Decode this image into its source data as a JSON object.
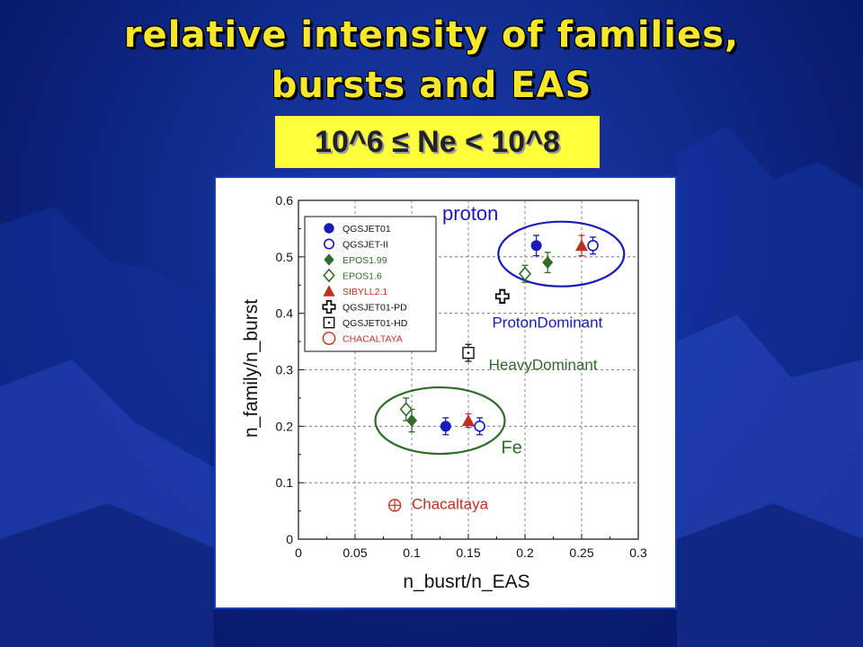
{
  "slide": {
    "title_line1": "relative intensity of families,",
    "title_line2": "bursts and EAS",
    "range_label": "10^6 ≤ Ne < 10^8"
  },
  "colors": {
    "title": "#f6e72a",
    "range_bg": "#ffff3b",
    "blue": "#1a1ab8",
    "green": "#2f6b2a",
    "red": "#c03020",
    "black": "#111111"
  },
  "chart_data": {
    "type": "scatter",
    "xlabel": "n_busrt/n_EAS",
    "ylabel": "n_family/n_burst",
    "xlim": [
      0,
      0.3
    ],
    "ylim": [
      0,
      0.6
    ],
    "xticks": [
      "0",
      "0.05",
      "0.1",
      "0.15",
      "0.2",
      "0.25",
      "0.3"
    ],
    "yticks": [
      "0",
      "0.1",
      "0.2",
      "0.3",
      "0.4",
      "0.5",
      "0.6"
    ],
    "xtick_values": [
      0,
      0.05,
      0.1,
      0.15,
      0.2,
      0.25,
      0.3
    ],
    "ytick_values": [
      0,
      0.1,
      0.2,
      0.3,
      0.4,
      0.5,
      0.6
    ],
    "legend_position": "top-left",
    "series": [
      {
        "name": "QGSJET01",
        "marker": "filled-circle",
        "color": "#1a1ab8",
        "points": [
          {
            "x": 0.21,
            "y": 0.52,
            "err": 0.018
          },
          {
            "x": 0.13,
            "y": 0.2,
            "err": 0.015
          }
        ]
      },
      {
        "name": "QGSJET-II",
        "marker": "open-circle",
        "color": "#1a1ab8",
        "points": [
          {
            "x": 0.26,
            "y": 0.52,
            "err": 0.015
          },
          {
            "x": 0.16,
            "y": 0.2,
            "err": 0.015
          }
        ]
      },
      {
        "name": "EPOS1.99",
        "marker": "filled-diamond",
        "color": "#2f6b2a",
        "points": [
          {
            "x": 0.22,
            "y": 0.49,
            "err": 0.018
          },
          {
            "x": 0.1,
            "y": 0.21,
            "err": 0.02
          }
        ]
      },
      {
        "name": "EPOS1.6",
        "marker": "open-diamond",
        "color": "#2f6b2a",
        "points": [
          {
            "x": 0.2,
            "y": 0.47,
            "err": 0.015
          },
          {
            "x": 0.095,
            "y": 0.23,
            "err": 0.02
          }
        ]
      },
      {
        "name": "SIBYLL2.1",
        "marker": "filled-triangle",
        "color": "#c03020",
        "points": [
          {
            "x": 0.25,
            "y": 0.52,
            "err": 0.018
          },
          {
            "x": 0.15,
            "y": 0.21,
            "err": 0.012
          }
        ]
      },
      {
        "name": "QGSJET01-PD",
        "marker": "open-cross",
        "color": "#111111",
        "points": [
          {
            "x": 0.18,
            "y": 0.43,
            "err": 0.012
          }
        ]
      },
      {
        "name": "QGSJET01-HD",
        "marker": "dotted-square",
        "color": "#111111",
        "points": [
          {
            "x": 0.15,
            "y": 0.33,
            "err": 0.015
          }
        ]
      },
      {
        "name": "CHACALTAYA",
        "marker": "open-big-circle",
        "color": "#c03020",
        "points": []
      }
    ],
    "annotations": [
      {
        "text": "proton",
        "color": "#1a1ab8"
      },
      {
        "text": "ProtonDominant",
        "color": "#1a1ab8"
      },
      {
        "text": "HeavyDominant",
        "color": "#2f6b2a"
      },
      {
        "text": "Fe",
        "color": "#2f6b2a"
      },
      {
        "text": "Chacaltaya",
        "color": "#c03020"
      }
    ],
    "chacaltaya_point": {
      "x": 0.085,
      "y": 0.06
    }
  }
}
